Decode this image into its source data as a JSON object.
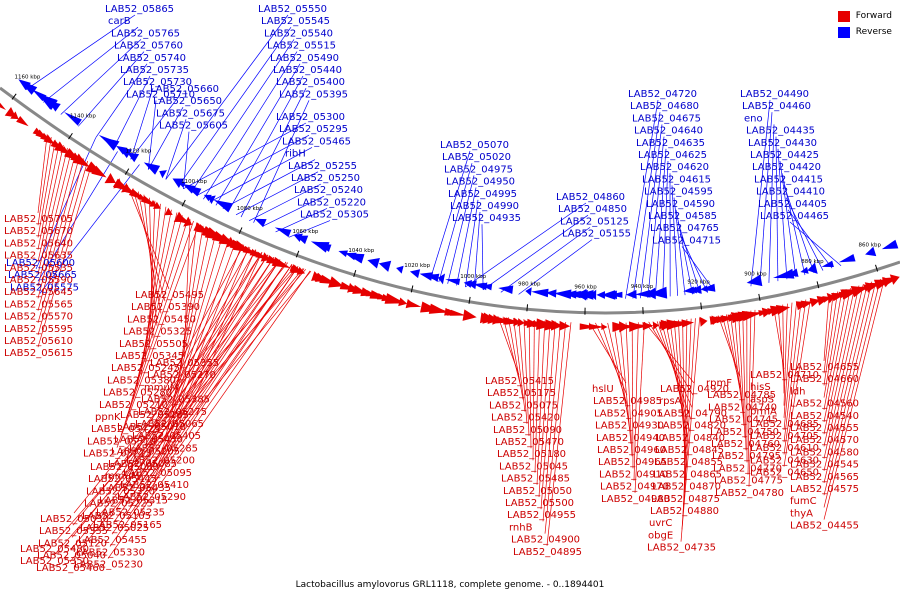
{
  "legend": {
    "forward": {
      "label": "Forward",
      "color": "#e60000"
    },
    "reverse": {
      "label": "Reverse",
      "color": "#0000ff"
    }
  },
  "caption": "Lactobacillus amylovorus GRL1118, complete genome. - 0..1894401",
  "colors": {
    "backbone": "#888888",
    "forward": "#e60000",
    "reverse": "#0000ff",
    "label_forward": "#cc0000",
    "label_reverse": "#0000cc"
  },
  "scale_ticks": [
    "1160 kbp",
    "1140 kbp",
    "1120 kbp",
    "1100 kbp",
    "1080 kbp",
    "1060 kbp",
    "1040 kbp",
    "1020 kbp",
    "1000 kbp",
    "980 kbp",
    "960 kbp",
    "940 kbp",
    "920 kbp",
    "900 kbp",
    "880 kbp",
    "860 kbp"
  ],
  "reverse_labels": [
    "LAB52_05865",
    "carB",
    "LAB52_05765",
    "LAB52_05760",
    "LAB52_05740",
    "LAB52_05735",
    "LAB52_05730",
    "LAB52_05710",
    "LAB52_05660",
    "LAB52_05650",
    "LAB52_05675",
    "LAB52_05605",
    "LAB52_05550",
    "LAB52_05545",
    "LAB52_05540",
    "LAB52_05515",
    "LAB52_05490",
    "LAB52_05440",
    "LAB52_05400",
    "LAB52_05395",
    "LAB52_05300",
    "LAB52_05295",
    "LAB52_05465",
    "ribH",
    "LAB52_05255",
    "LAB52_05250",
    "LAB52_05240",
    "LAB52_05220",
    "LAB52_05305",
    "LAB52_05070",
    "LAB52_05020",
    "LAB52_04975",
    "LAB52_04950",
    "LAB52_04995",
    "LAB52_04990",
    "LAB52_04935",
    "LAB52_04860",
    "LAB52_04850",
    "LAB52_05125",
    "LAB52_05155",
    "LAB52_04720",
    "LAB52_04680",
    "LAB52_04675",
    "LAB52_04640",
    "LAB52_04635",
    "LAB52_04625",
    "LAB52_04620",
    "LAB52_04615",
    "LAB52_04595",
    "LAB52_04590",
    "LAB52_04585",
    "LAB52_04765",
    "LAB52_04715",
    "LAB52_04490",
    "LAB52_04460",
    "eno",
    "LAB52_04435",
    "LAB52_04430",
    "LAB52_04425",
    "LAB52_04420",
    "LAB52_04415",
    "LAB52_04410",
    "LAB52_04405",
    "LAB52_04465",
    "LAB52_05600",
    "LAB52_05665",
    "LAB52_05575"
  ],
  "forward_labels": [
    "LAB52_05705",
    "LAB52_05670",
    "LAB52_05640",
    "LAB52_05635",
    "LAB52_05535",
    "LAB52_05590",
    "LAB52_05645",
    "LAB52_05565",
    "LAB52_05570",
    "LAB52_05595",
    "LAB52_05610",
    "LAB52_05615",
    "LAB52_05495",
    "LAB52_05390",
    "LAB52_05450",
    "LAB52_05325",
    "LAB52_05505",
    "LAB52_05345",
    "LAB52_05245",
    "LAB52_05380",
    "LAB52_05280",
    "LAB52_05210",
    "ppnK",
    "LAB52_05425",
    "LAB52_05310",
    "LAB52_05215",
    "LAB52_05355",
    "LAB52_05270",
    "mmuM",
    "LAB52_05385",
    "LAB52_05275",
    "LAB52_05065",
    "LAB52_05405",
    "LAB52_05285",
    "LAB52_05200",
    "LAB52_05095",
    "LAB52_05410",
    "LAB52_05290",
    "LAB52_05185",
    "LAB52_05010",
    "LAB52_05430",
    "LAB52_05205",
    "LAB52_05085",
    "mmuM",
    "LAB52_05435",
    "LAB52_05315",
    "LAB52_05235",
    "LAB52_05165",
    "LAB52_05080",
    "LAB52_05445",
    "LAB52_05320",
    "LAB52_05225",
    "LAB52_05105",
    "LAB52_05025",
    "LAB52_05455",
    "LAB52_05330",
    "LAB52_05230",
    "LAB52_05110",
    "LAB52_05030",
    "LAB52_05335",
    "LAB52_05120",
    "LAB52_05040",
    "LAB52_05460",
    "LAB52_05340",
    "LAB52_05135",
    "LAB52_05055",
    "LAB52_05480",
    "LAB52_05350",
    "LAB52_05160",
    "LAB52_05060",
    "LAB52_05510",
    "LAB52_05360",
    "LAB52_05170",
    "LAB52_05035",
    "LAB52_05415",
    "LAB52_05175",
    "LAB52_05075",
    "LAB52_05420",
    "LAB52_05090",
    "LAB52_05470",
    "LAB52_05180",
    "LAB52_05045",
    "LAB52_05485",
    "LAB52_05050",
    "LAB52_05500",
    "LAB52_04955",
    "rnhB",
    "LAB52_04900",
    "LAB52_04895",
    "hslU",
    "LAB52_04985",
    "LAB52_04905",
    "LAB52_04930",
    "LAB52_04940",
    "LAB52_04960",
    "LAB52_04965",
    "LAB52_04910",
    "LAB52_04970",
    "LAB52_04980",
    "LAB52_04920",
    "rpsA",
    "LAB52_04790",
    "LAB52_04820",
    "LAB52_04840",
    "LAB52_04845",
    "LAB52_04855",
    "LAB52_04865",
    "LAB52_04870",
    "LAB52_04875",
    "LAB52_04880",
    "uvrC",
    "obgE",
    "LAB52_04735",
    "rpmF",
    "LAB52_04785",
    "LAB52_04740",
    "LAB52_04745",
    "LAB52_04750",
    "LAB52_04760",
    "LAB52_04795",
    "LAB52_04770",
    "LAB52_04775",
    "LAB52_04780",
    "LAB52_04710",
    "hisS",
    "aspS",
    "prmA",
    "LAB52_04685",
    "LAB52_04705",
    "LAB52_04610",
    "LAB52_04630",
    "LAB52_04650",
    "LAB52_04655",
    "LAB52_04660",
    "ldh",
    "LAB52_04560",
    "LAB52_04540",
    "LAB52_04555",
    "LAB52_04570",
    "LAB52_04580",
    "LAB52_04545",
    "LAB52_04565",
    "LAB52_04575",
    "fumC",
    "thyA",
    "LAB52_04455",
    "LAB52_04470",
    "LAB52_04480",
    "LAB52_04485",
    "LAB52_04495",
    "LAB52_04500",
    "LAB52_04505",
    "LAB52_04515",
    "LAB52_04520",
    "LAB52_04525",
    "LAB52_04535"
  ]
}
